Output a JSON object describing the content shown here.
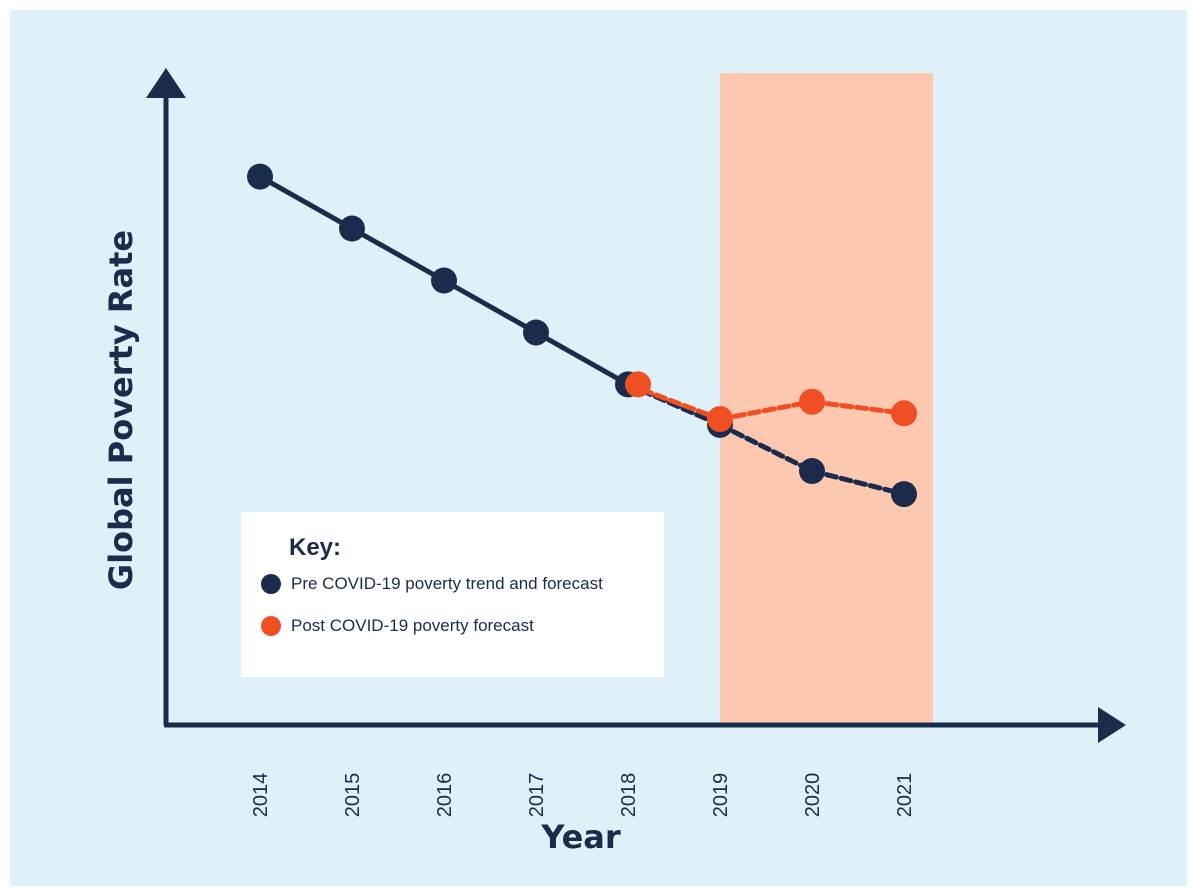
{
  "chart_data": {
    "type": "line",
    "xlabel": "Year",
    "ylabel": "Global Poverty Rate",
    "categories": [
      "2014",
      "2015",
      "2016",
      "2017",
      "2018",
      "2019",
      "2020",
      "2021"
    ],
    "highlight_range": [
      "2019",
      "2022"
    ],
    "legend": {
      "title": "Key:",
      "placement": "lower-left"
    },
    "series": [
      {
        "name": "Pre COVID-19 poverty trend and forecast",
        "color": "#1a2b4c",
        "x": [
          "2014",
          "2015",
          "2016",
          "2017",
          "2018",
          "2019",
          "2020",
          "2021"
        ],
        "values": [
          9.5,
          8.6,
          7.7,
          6.8,
          5.9,
          5.2,
          4.4,
          4.0
        ],
        "solid_until": "2018"
      },
      {
        "name": "Post COVID-19 poverty forecast",
        "color": "#f04e23",
        "x": [
          "2018",
          "2019",
          "2020",
          "2021"
        ],
        "values": [
          5.9,
          5.3,
          5.6,
          5.4
        ],
        "solid_until": null
      }
    ],
    "colors": {
      "background": "#e0f0f8",
      "highlight": "#fcc8b0",
      "axis": "#1a2b4c"
    }
  }
}
